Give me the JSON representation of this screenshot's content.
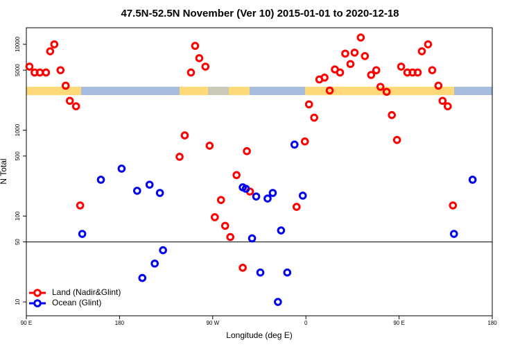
{
  "chart_data": {
    "type": "scatter",
    "title": "47.5N-52.5N November (Ver 10)   2015-01-01 to 2020-12-18",
    "x_label": "Longitude (deg E)",
    "y_label": "N Total",
    "log_y": true,
    "legend": "bottomleft",
    "hline": 50,
    "xlim": [
      90,
      540
    ],
    "ylim": [
      6.9,
      15600
    ],
    "xticks": [
      {
        "value": 90,
        "label": "90 E"
      },
      180,
      {
        "value": 270,
        "label": "90 W"
      },
      {
        "value": 360,
        "label": "0"
      },
      {
        "value": 450,
        "label": "90 E"
      },
      {
        "value": 540,
        "label": "180"
      }
    ],
    "yticks": [
      10,
      50,
      100,
      500,
      1000,
      5000,
      10000
    ],
    "series": [
      {
        "name": "Land (Nadir&Glint)",
        "color": "#ff0000",
        "x": [
          93,
          98,
          103,
          109,
          113,
          117,
          123,
          128,
          132,
          138,
          142,
          238,
          243,
          249,
          253,
          257,
          263,
          267,
          272,
          278,
          282,
          287,
          293,
          299,
          303,
          306,
          351,
          359,
          363,
          368,
          373,
          378,
          383,
          388,
          393,
          398,
          403,
          407,
          413,
          417,
          423,
          428,
          432,
          438,
          443,
          448,
          452,
          458,
          463,
          468,
          472,
          478,
          482,
          488,
          492,
          497,
          502
        ],
        "values": [
          5500,
          4700,
          4700,
          4700,
          8300,
          10000,
          5000,
          3300,
          2200,
          1900,
          133,
          490,
          870,
          4700,
          9600,
          6900,
          5500,
          660,
          97,
          154,
          77,
          57,
          300,
          25,
          570,
          193,
          128,
          740,
          2000,
          1400,
          3900,
          4100,
          2900,
          5100,
          4700,
          7800,
          5900,
          8000,
          12000,
          7300,
          4400,
          5000,
          3200,
          2800,
          1500,
          770,
          5500,
          4700,
          4700,
          4700,
          8300,
          10000,
          5000,
          3300,
          2200,
          1900,
          133
        ]
      },
      {
        "name": "Ocean (Glint)",
        "color": "#0000ee",
        "x": [
          144,
          162,
          182,
          197,
          202,
          209,
          214,
          219,
          222,
          299,
          302,
          308,
          312,
          316,
          323,
          328,
          333,
          336,
          342,
          349,
          357,
          503,
          521
        ],
        "values": [
          62,
          265,
          357,
          197,
          19,
          232,
          28,
          186,
          40,
          216,
          208,
          55,
          169,
          22,
          160,
          186,
          10,
          68,
          22,
          680,
          173,
          62,
          265
        ]
      }
    ]
  }
}
